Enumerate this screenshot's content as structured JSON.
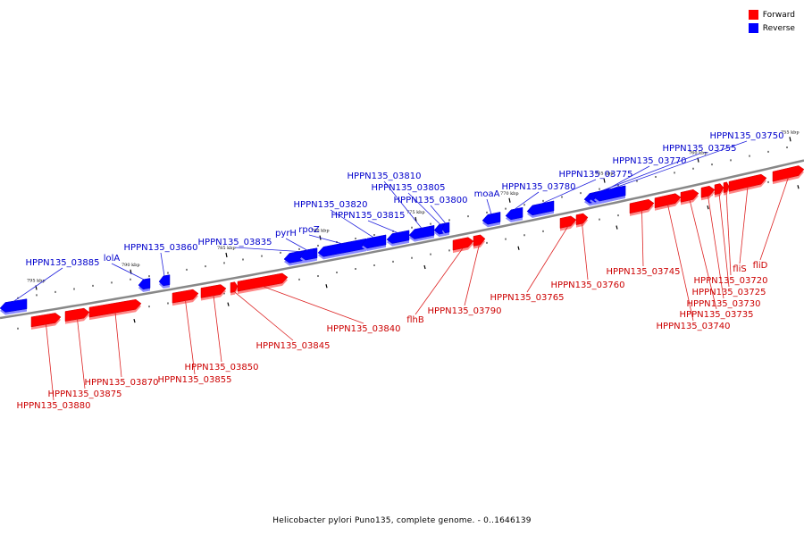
{
  "legend": {
    "forward": {
      "label": "Forward",
      "color": "#ff0000"
    },
    "reverse": {
      "label": "Reverse",
      "color": "#0000ff"
    }
  },
  "caption": "Helicobacter pylori Puno135, complete genome. - 0..1646139",
  "colors": {
    "backbone": "#888888",
    "forward": "#ff0000",
    "forward_shadow": "#ff8888",
    "reverse": "#0000ff",
    "reverse_shadow": "#8888ff",
    "forward_label": "#cc0000",
    "reverse_label": "#0000cc"
  },
  "scale_labels": [
    "795 kbp",
    "790 kbp",
    "785 kbp",
    "780 kbp",
    "775 kbp",
    "770 kbp",
    "765 kbp",
    "760 kbp",
    "755 kbp"
  ],
  "reverse_genes": [
    "HPPN135_03885",
    "lolA",
    "HPPN135_03860",
    "HPPN135_03835",
    "pyrH",
    "rpoZ",
    "HPPN135_03820",
    "HPPN135_03815",
    "HPPN135_03810",
    "HPPN135_03805",
    "HPPN135_03800",
    "moaA",
    "HPPN135_03780",
    "HPPN135_03775",
    "HPPN135_03770",
    "HPPN135_03755",
    "HPPN135_03750"
  ],
  "forward_genes": [
    "HPPN135_03880",
    "HPPN135_03875",
    "HPPN135_03870",
    "HPPN135_03855",
    "HPPN135_03850",
    "HPPN135_03845",
    "HPPN135_03840",
    "flhB",
    "HPPN135_03790",
    "HPPN135_03765",
    "HPPN135_03760",
    "HPPN135_03745",
    "HPPN135_03740",
    "HPPN135_03735",
    "HPPN135_03730",
    "HPPN135_03725",
    "HPPN135_03720",
    "fliS",
    "fliD"
  ]
}
